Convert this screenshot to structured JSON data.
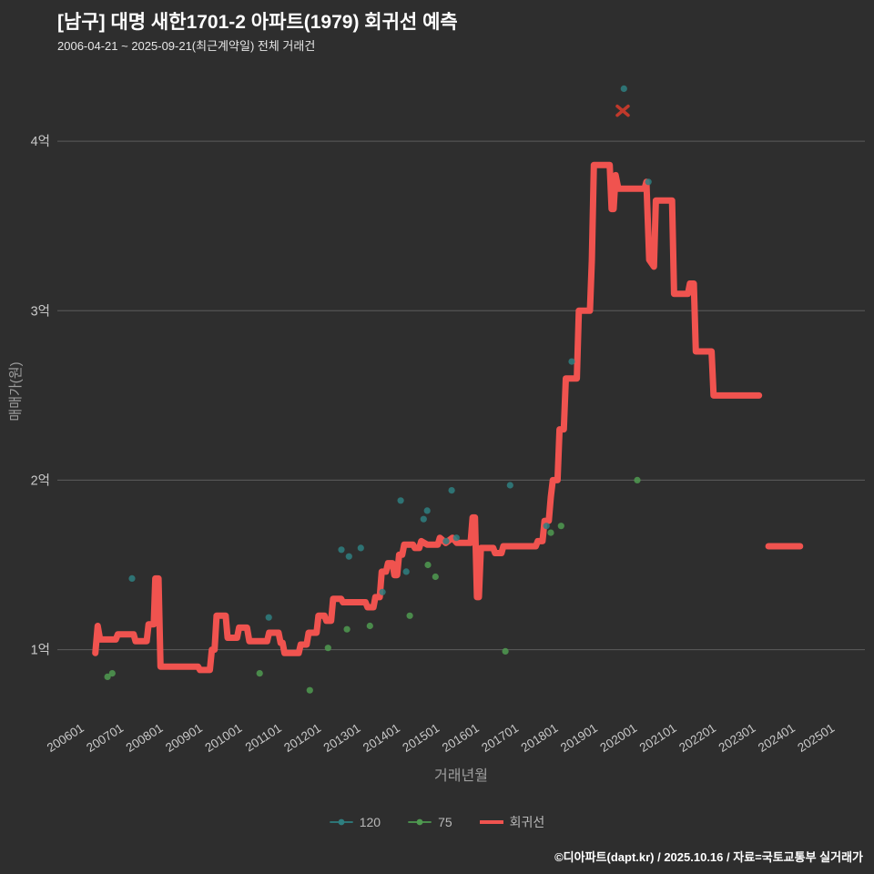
{
  "header": {
    "title": "[남구] 대명 새한1701-2 아파트(1979) 회귀선 예측",
    "subtitle": "2006-04-21 ~ 2025-09-21(최근계약일) 전체 거래건"
  },
  "footer": {
    "credit": "©디아파트(dapt.kr) / 2025.10.16 / 자료=국토교통부 실거래가"
  },
  "colors": {
    "background": "#2e2e2e",
    "grid": "#5c5c5c",
    "tick_text": "#c8c8c8",
    "axis_title": "#9e9e9e",
    "series_120": "#2e7f80",
    "series_75": "#4f9a50",
    "regression": "#f0534f",
    "prediction_marker": "#c0392b"
  },
  "chart_data": {
    "type": "line+scatter",
    "xlabel": "거래년월",
    "ylabel": "매매가(원)",
    "value_unit": "억",
    "grid": true,
    "legend_position": "bottom-center",
    "xlim": [
      2005.42,
      2025.86
    ],
    "ylim_100m": [
      0.67,
      4.35
    ],
    "x_ticks": [
      "200601",
      "200701",
      "200801",
      "200901",
      "201001",
      "201101",
      "201201",
      "201301",
      "201401",
      "201501",
      "201601",
      "201701",
      "201801",
      "201901",
      "202001",
      "202101",
      "202201",
      "202301",
      "202401",
      "202501"
    ],
    "y_ticks": [
      {
        "label": "1억",
        "value": 1
      },
      {
        "label": "2억",
        "value": 2
      },
      {
        "label": "3억",
        "value": 3
      },
      {
        "label": "4억",
        "value": 4
      }
    ],
    "series": [
      {
        "name": "120",
        "type": "scatter",
        "color": "#2e7f80",
        "points": [
          [
            2007.31,
            1.42
          ],
          [
            2010.77,
            1.19
          ],
          [
            2012.61,
            1.59
          ],
          [
            2012.8,
            1.55
          ],
          [
            2013.1,
            1.6
          ],
          [
            2013.65,
            1.34
          ],
          [
            2014.11,
            1.88
          ],
          [
            2014.25,
            1.46
          ],
          [
            2014.69,
            1.77
          ],
          [
            2014.78,
            1.82
          ],
          [
            2015.26,
            1.64
          ],
          [
            2015.4,
            1.94
          ],
          [
            2015.52,
            1.66
          ],
          [
            2016.88,
            1.97
          ],
          [
            2017.8,
            1.73
          ],
          [
            2018.44,
            2.7
          ],
          [
            2019.76,
            4.31
          ],
          [
            2020.38,
            3.76
          ]
        ]
      },
      {
        "name": "75",
        "type": "scatter",
        "color": "#4f9a50",
        "points": [
          [
            2006.69,
            0.84
          ],
          [
            2006.81,
            0.86
          ],
          [
            2010.54,
            0.86
          ],
          [
            2011.81,
            0.76
          ],
          [
            2012.27,
            1.01
          ],
          [
            2012.75,
            1.12
          ],
          [
            2013.33,
            1.14
          ],
          [
            2014.34,
            1.2
          ],
          [
            2014.8,
            1.5
          ],
          [
            2014.99,
            1.43
          ],
          [
            2016.76,
            0.99
          ],
          [
            2017.91,
            1.69
          ],
          [
            2018.17,
            1.73
          ],
          [
            2020.1,
            2.0
          ]
        ]
      },
      {
        "name": "회귀선",
        "type": "line",
        "color": "#f0534f",
        "width": 7,
        "segments": [
          [
            [
              2006.38,
              0.98
            ],
            [
              2006.44,
              1.14
            ],
            [
              2006.5,
              1.06
            ],
            [
              2006.9,
              1.06
            ],
            [
              2006.95,
              1.09
            ],
            [
              2007.35,
              1.09
            ],
            [
              2007.4,
              1.05
            ],
            [
              2007.68,
              1.05
            ],
            [
              2007.73,
              1.15
            ],
            [
              2007.86,
              1.15
            ],
            [
              2007.9,
              1.42
            ],
            [
              2007.98,
              1.42
            ],
            [
              2008.03,
              0.9
            ],
            [
              2008.98,
              0.9
            ],
            [
              2009.03,
              0.88
            ],
            [
              2009.28,
              0.88
            ],
            [
              2009.33,
              1.0
            ],
            [
              2009.4,
              1.0
            ],
            [
              2009.45,
              1.2
            ],
            [
              2009.68,
              1.2
            ],
            [
              2009.73,
              1.07
            ],
            [
              2009.97,
              1.07
            ],
            [
              2010.02,
              1.13
            ],
            [
              2010.22,
              1.13
            ],
            [
              2010.28,
              1.05
            ],
            [
              2010.73,
              1.05
            ],
            [
              2010.78,
              1.1
            ],
            [
              2011.02,
              1.1
            ],
            [
              2011.07,
              1.04
            ],
            [
              2011.12,
              1.04
            ],
            [
              2011.17,
              0.98
            ],
            [
              2011.53,
              0.98
            ],
            [
              2011.58,
              1.03
            ],
            [
              2011.73,
              1.03
            ],
            [
              2011.78,
              1.1
            ],
            [
              2011.98,
              1.1
            ],
            [
              2012.03,
              1.2
            ],
            [
              2012.18,
              1.2
            ],
            [
              2012.23,
              1.17
            ],
            [
              2012.35,
              1.17
            ],
            [
              2012.4,
              1.3
            ],
            [
              2012.6,
              1.3
            ],
            [
              2012.65,
              1.28
            ],
            [
              2013.22,
              1.28
            ],
            [
              2013.27,
              1.25
            ],
            [
              2013.42,
              1.25
            ],
            [
              2013.47,
              1.31
            ],
            [
              2013.58,
              1.31
            ],
            [
              2013.63,
              1.46
            ],
            [
              2013.74,
              1.46
            ],
            [
              2013.79,
              1.51
            ],
            [
              2013.9,
              1.51
            ],
            [
              2013.95,
              1.44
            ],
            [
              2014.02,
              1.44
            ],
            [
              2014.07,
              1.56
            ],
            [
              2014.15,
              1.56
            ],
            [
              2014.2,
              1.62
            ],
            [
              2014.42,
              1.62
            ],
            [
              2014.47,
              1.6
            ],
            [
              2014.58,
              1.6
            ],
            [
              2014.63,
              1.64
            ],
            [
              2014.78,
              1.62
            ],
            [
              2015.05,
              1.62
            ],
            [
              2015.1,
              1.66
            ],
            [
              2015.25,
              1.63
            ],
            [
              2015.42,
              1.66
            ],
            [
              2015.53,
              1.63
            ],
            [
              2015.88,
              1.63
            ],
            [
              2015.93,
              1.78
            ],
            [
              2015.99,
              1.78
            ],
            [
              2016.04,
              1.31
            ],
            [
              2016.09,
              1.31
            ],
            [
              2016.14,
              1.6
            ],
            [
              2016.45,
              1.6
            ],
            [
              2016.5,
              1.57
            ],
            [
              2016.66,
              1.57
            ],
            [
              2016.71,
              1.61
            ],
            [
              2017.53,
              1.61
            ],
            [
              2017.58,
              1.64
            ],
            [
              2017.7,
              1.64
            ],
            [
              2017.75,
              1.76
            ],
            [
              2017.86,
              1.76
            ],
            [
              2017.91,
              1.9
            ],
            [
              2017.96,
              2.0
            ],
            [
              2018.08,
              2.0
            ],
            [
              2018.13,
              2.3
            ],
            [
              2018.24,
              2.3
            ],
            [
              2018.29,
              2.6
            ],
            [
              2018.57,
              2.6
            ],
            [
              2018.62,
              3.0
            ],
            [
              2018.9,
              3.0
            ],
            [
              2018.95,
              3.3
            ],
            [
              2019.0,
              3.86
            ],
            [
              2019.4,
              3.86
            ],
            [
              2019.45,
              3.6
            ],
            [
              2019.5,
              3.6
            ],
            [
              2019.55,
              3.8
            ],
            [
              2019.62,
              3.72
            ],
            [
              2020.28,
              3.72
            ],
            [
              2020.33,
              3.76
            ],
            [
              2020.4,
              3.3
            ],
            [
              2020.52,
              3.26
            ],
            [
              2020.57,
              3.65
            ],
            [
              2020.98,
              3.65
            ],
            [
              2021.03,
              3.1
            ],
            [
              2021.38,
              3.1
            ],
            [
              2021.43,
              3.16
            ],
            [
              2021.53,
              3.16
            ],
            [
              2021.58,
              2.76
            ],
            [
              2021.98,
              2.76
            ],
            [
              2022.03,
              2.5
            ],
            [
              2023.18,
              2.5
            ]
          ],
          [
            [
              2023.42,
              1.61
            ],
            [
              2024.22,
              1.61
            ]
          ]
        ]
      }
    ],
    "annotations": [
      {
        "type": "x-marker",
        "name": "prediction-point",
        "color": "#c0392b",
        "t": 2019.73,
        "v": 4.18
      }
    ]
  }
}
